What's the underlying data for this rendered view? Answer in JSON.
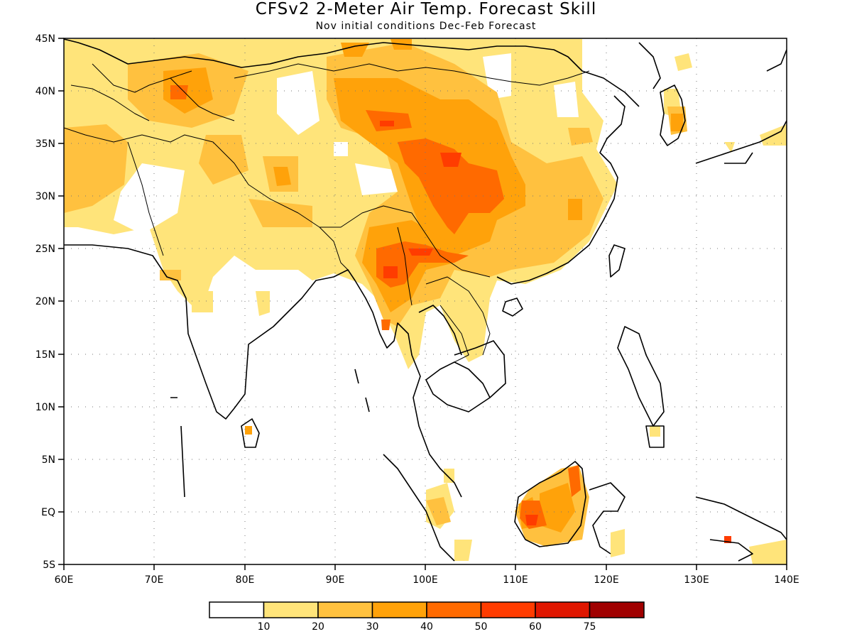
{
  "title": "CFSv2 2-Meter Air Temp. Forecast Skill",
  "subtitle": "Nov initial conditions  Dec-Feb Forecast",
  "map": {
    "region": "South and East Asia",
    "lon_range": [
      60,
      140
    ],
    "lat_range": [
      -5,
      45
    ],
    "x_ticks": [
      "60E",
      "70E",
      "80E",
      "90E",
      "100E",
      "110E",
      "120E",
      "130E",
      "140E"
    ],
    "y_ticks": [
      "45N",
      "40N",
      "35N",
      "30N",
      "25N",
      "20N",
      "15N",
      "10N",
      "5N",
      "EQ",
      "5S"
    ],
    "grid": "dotted"
  },
  "colorbar": {
    "colors": [
      "#ffffff",
      "#ffe47a",
      "#ffc13f",
      "#ffa20a",
      "#ff6a00",
      "#ff3c00",
      "#e01700",
      "#a00000"
    ],
    "labels": [
      "10",
      "20",
      "30",
      "40",
      "50",
      "60",
      "75"
    ]
  },
  "colors": {
    "level_10_20": "#ffe47a",
    "level_20_30": "#ffc13f",
    "level_30_40": "#ffa20a",
    "level_40_50": "#ff6a00",
    "level_50_60": "#ff3c00"
  }
}
